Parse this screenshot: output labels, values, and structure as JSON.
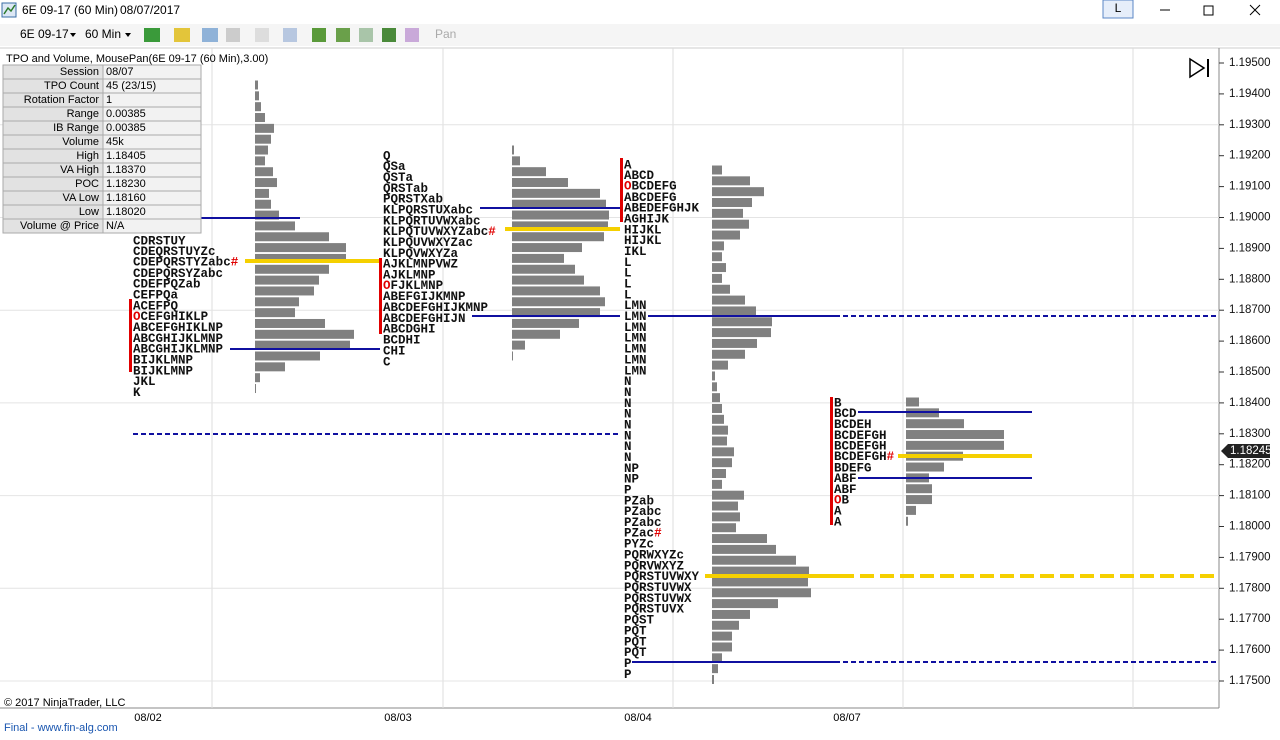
{
  "window": {
    "title": "6E 09-17 (60 Min)",
    "date": "08/07/2017",
    "mode": "L"
  },
  "toolbar": {
    "instrument": "6E 09-17",
    "interval": "60 Min",
    "pan": "Pan"
  },
  "info": {
    "title": "TPO and Volume, MousePan(6E 09-17 (60 Min),3.00)",
    "rows": [
      [
        "Session",
        "08/07"
      ],
      [
        "TPO Count",
        "45 (23/15)"
      ],
      [
        "Rotation Factor",
        "1"
      ],
      [
        "Range",
        "0.00385"
      ],
      [
        "IB Range",
        "0.00385"
      ],
      [
        "Volume",
        "45k"
      ],
      [
        "High",
        "1.18405"
      ],
      [
        "VA High",
        "1.18370"
      ],
      [
        "POC",
        "1.18230"
      ],
      [
        "VA Low",
        "1.18160"
      ],
      [
        "Low",
        "1.18020"
      ],
      [
        "Volume @ Price",
        "N/A"
      ]
    ]
  },
  "price_axis": {
    "labels": [
      "1.19500",
      "1.19400",
      "1.19300",
      "1.19200",
      "1.19100",
      "1.19000",
      "1.18900",
      "1.18800",
      "1.18700",
      "1.18600",
      "1.18500",
      "1.18400",
      "1.18300",
      "1.18200",
      "1.18100",
      "1.18000",
      "1.17900",
      "1.17800",
      "1.17700",
      "1.17600",
      "1.17500"
    ],
    "current": "1.18245"
  },
  "sessions": [
    {
      "date": "08/02",
      "tpo": [
        "CDRSTUY",
        "CDEQRSTUYZc",
        "CDEPQRSTYZabc#",
        "CDEPQRSYZabc",
        "CDEFPQZab",
        "CEFPQa",
        "ACEFPQ",
        "OCEFGHIKLP",
        "ABCEFGHIKLNP",
        "ABCGHIJKLMNP",
        "ABCGHIJKLMNP",
        "BIJKLMNP",
        "BIJKLMNP",
        "JKL",
        "K"
      ],
      "volume": [
        3,
        4,
        6,
        10,
        19,
        16,
        13,
        10,
        18,
        22,
        14,
        16,
        24,
        40,
        74,
        91,
        91,
        74,
        64,
        59,
        44,
        40,
        70,
        99,
        95,
        65,
        30,
        5,
        1
      ]
    },
    {
      "date": "08/03",
      "tpo": [
        "Q",
        "QSa",
        "QSTa",
        "QRSTab",
        "PQRSTXab",
        "KLPQRSTUXabc",
        "KLPQRTUVWXabc",
        "KLPQTUVWXYZabc#",
        "KLPQUVWXYZac",
        "KLPQVWXYZa",
        "AJKLMNPVWZ",
        "AJKLMNP",
        "OFJKLMNP",
        "ABEFGIJKMNP",
        "ABCDEFGHIJKMNP",
        "ABCDEFGHIJN",
        "ABCDGHI",
        "BCDHI",
        "CHI",
        "C"
      ],
      "volume": [
        2,
        8,
        34,
        56,
        88,
        94,
        97,
        96,
        92,
        70,
        52,
        63,
        72,
        88,
        93,
        88,
        67,
        48,
        13,
        1
      ]
    },
    {
      "date": "08/04",
      "tpo": [
        "A",
        "ABCD",
        "OBCDEFG",
        "ABCDEFG",
        "ABEDEFGHJK",
        "AGHIJK",
        "HIJKL",
        "HIJKL",
        "IKL",
        "L",
        "L",
        "L",
        "L",
        "LMN",
        "LMN",
        "LMN",
        "LMN",
        "LMN",
        "LMN",
        "LMN",
        "N",
        "N",
        "N",
        "N",
        "N",
        "N",
        "N",
        "N",
        "NP",
        "NP",
        "P",
        "PZab",
        "PZabc",
        "PZabc",
        "PZac#",
        "PYZc",
        "PQRWXYZc",
        "PQRVWXYZ",
        "PQRSTUVWXY",
        "PQRSTUVWX",
        "PQRSTUVWX",
        "PQRSTUVX",
        "PQST",
        "PQT",
        "PQT",
        "PQT",
        "P",
        "P"
      ],
      "volume": [
        10,
        38,
        52,
        40,
        31,
        37,
        28,
        12,
        10,
        14,
        10,
        18,
        33,
        44,
        60,
        59,
        45,
        33,
        16,
        3,
        5,
        8,
        10,
        12,
        16,
        15,
        22,
        20,
        14,
        10,
        32,
        26,
        28,
        24,
        55,
        64,
        84,
        97,
        96,
        99,
        66,
        38,
        27,
        20,
        20,
        10,
        6,
        2
      ]
    },
    {
      "date": "08/07",
      "tpo": [
        "B",
        "BCD",
        "BCDEH",
        "BCDEFGH",
        "BCDEFGH",
        "BCDEFGH#",
        "BDEFG",
        "ABF",
        "ABF",
        "OB",
        "A",
        "A"
      ],
      "volume": [
        13,
        33,
        58,
        98,
        98,
        57,
        38,
        23,
        26,
        26,
        10,
        2
      ]
    }
  ],
  "footer": {
    "copyright": "© 2017 NinjaTrader, LLC",
    "credit": "Final - www.fin-alg.com"
  }
}
